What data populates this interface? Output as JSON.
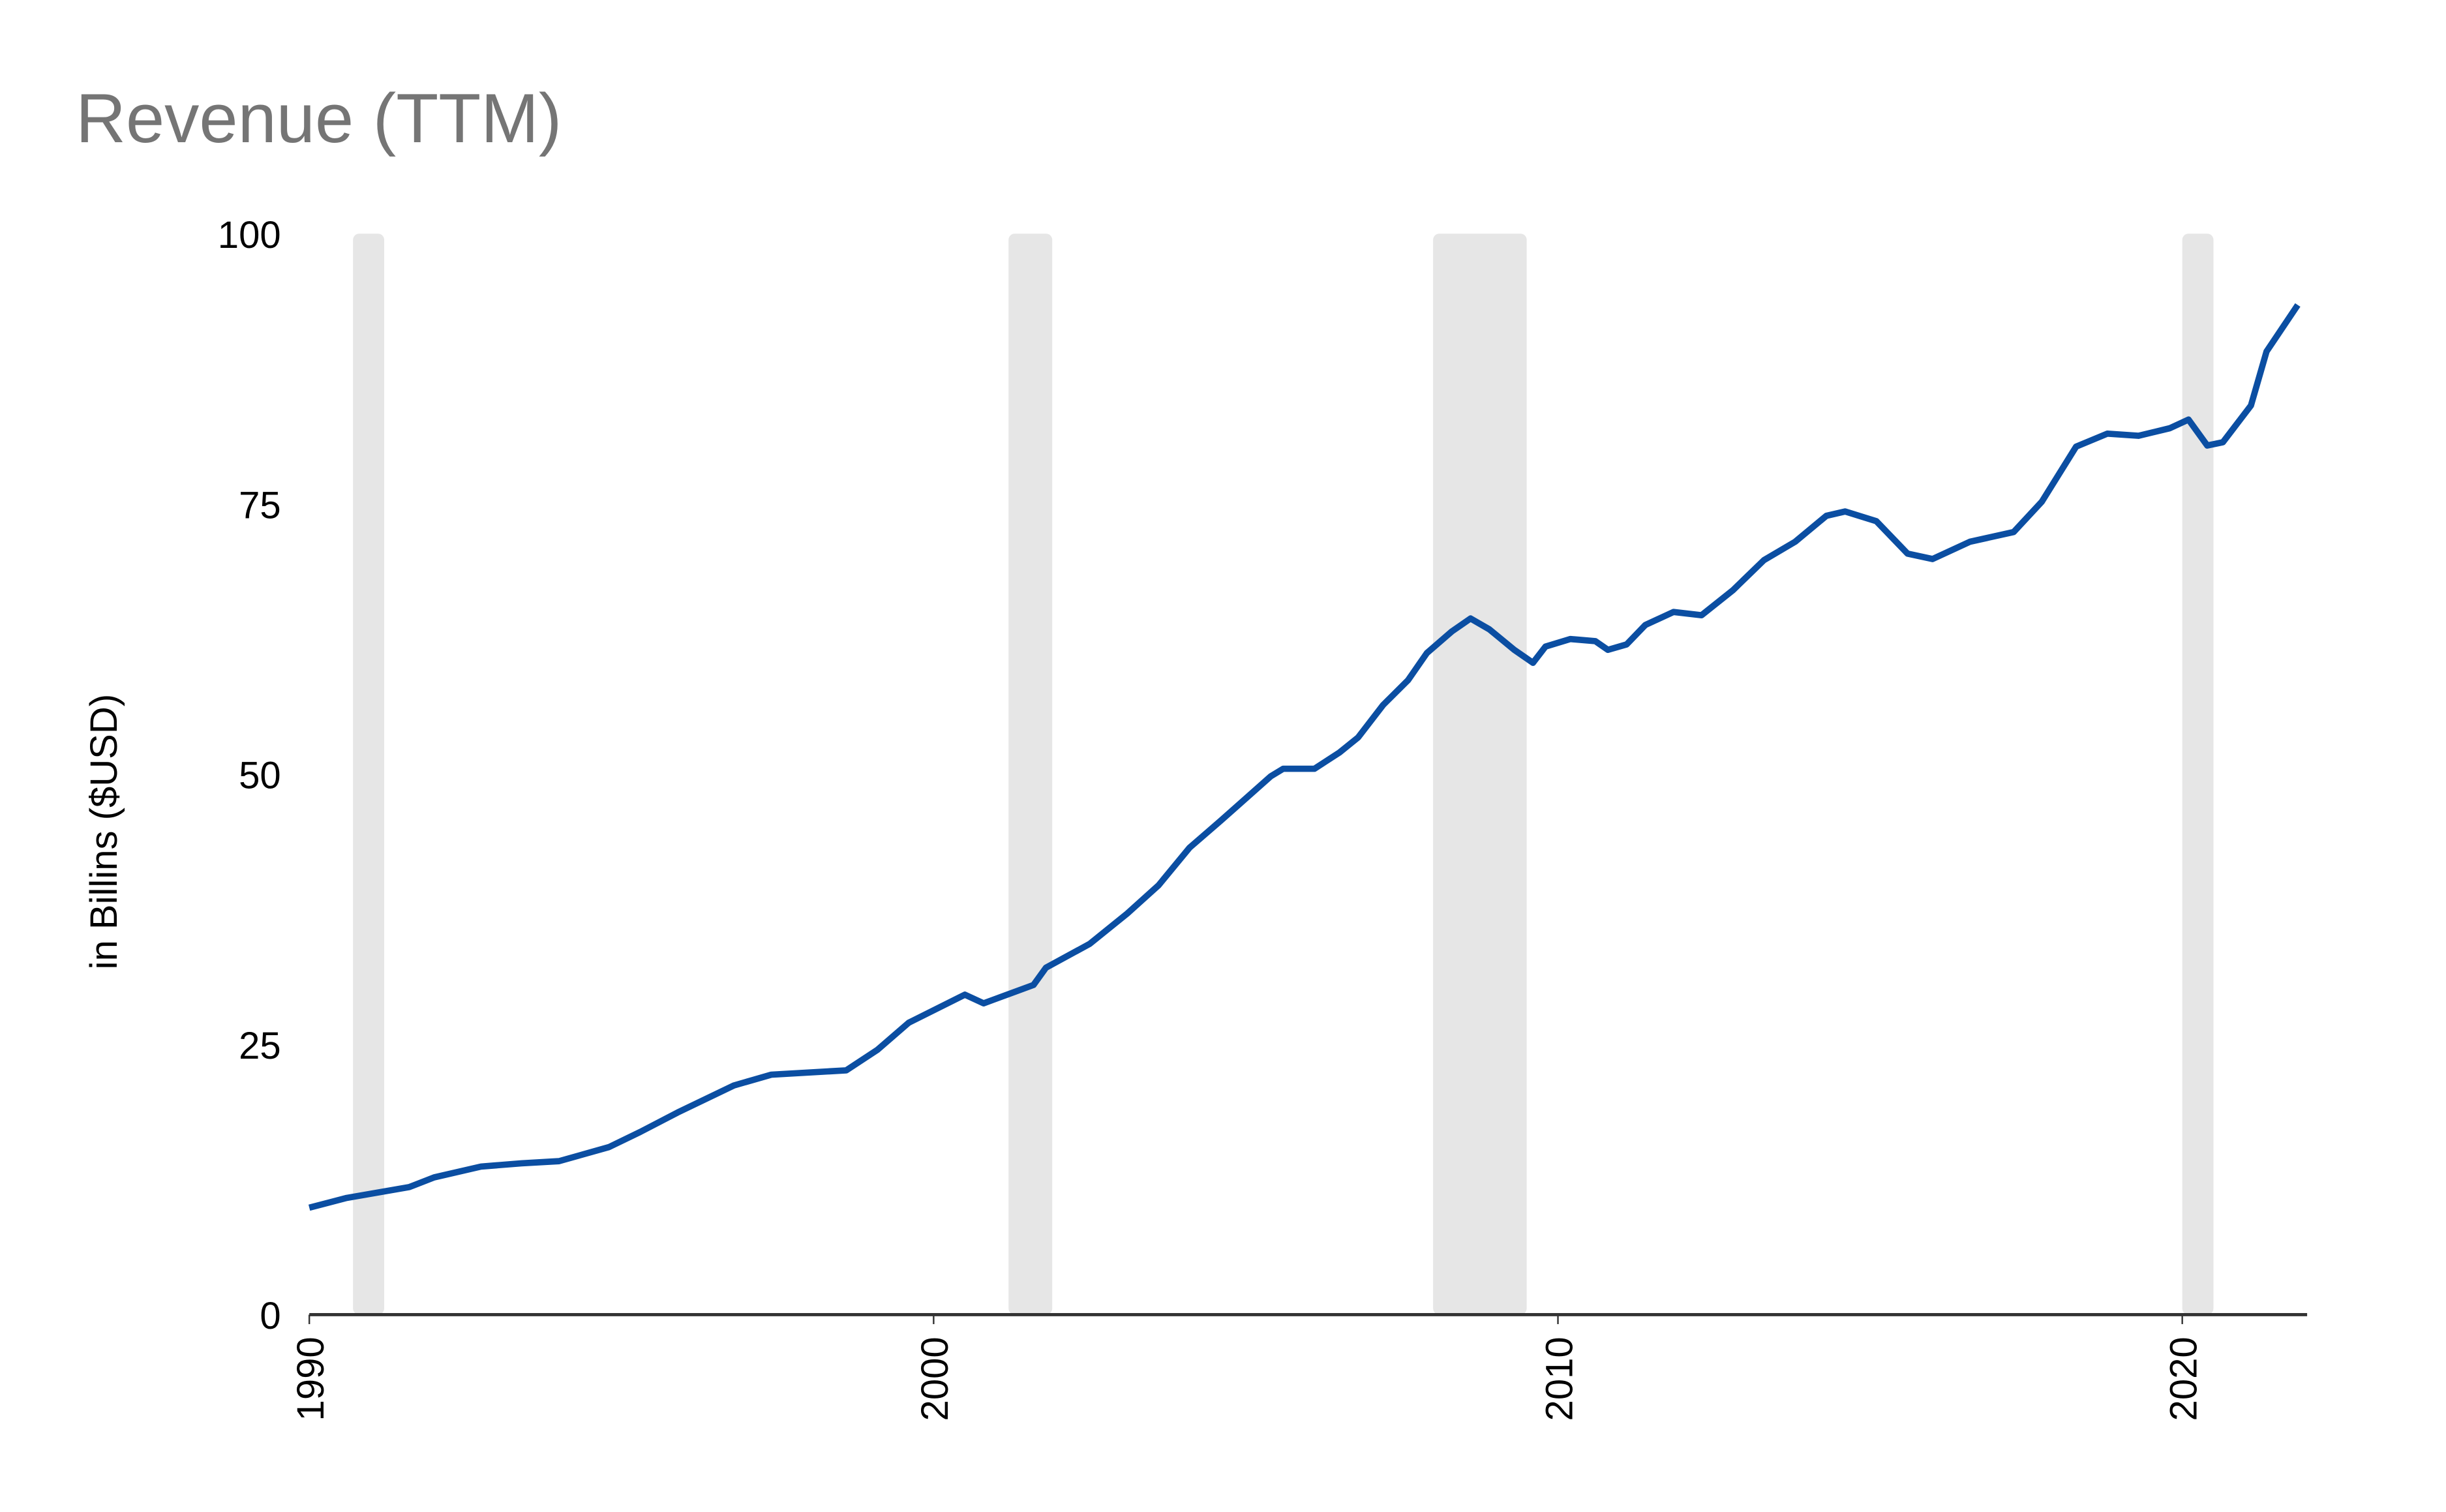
{
  "chart_data": {
    "type": "line",
    "title": "Revenue (TTM)",
    "y_label": "in Billins ($USD)",
    "x": [
      1990.0,
      1990.6,
      1991.6,
      1992.0,
      1992.75,
      1993.4,
      1994.0,
      1994.8,
      1995.3,
      1995.9,
      1996.8,
      1997.4,
      1998.6,
      1999.1,
      1999.6,
      2000.5,
      2000.8,
      2001.6,
      2001.8,
      2002.5,
      2003.1,
      2003.6,
      2004.1,
      2004.6,
      2005.4,
      2005.6,
      2006.1,
      2006.5,
      2006.8,
      2007.2,
      2007.6,
      2007.9,
      2008.3,
      2008.6,
      2008.9,
      2009.3,
      2009.6,
      2009.8,
      2010.2,
      2010.6,
      2010.8,
      2011.1,
      2011.4,
      2011.85,
      2012.3,
      2012.8,
      2013.3,
      2013.8,
      2014.3,
      2014.6,
      2015.1,
      2015.6,
      2016.0,
      2016.6,
      2017.3,
      2017.75,
      2018.3,
      2018.8,
      2019.3,
      2019.8,
      2020.1,
      2020.4,
      2020.65,
      2021.1,
      2021.35,
      2021.85
    ],
    "series": [
      {
        "name": "Revenue",
        "color": "#0b4ea2",
        "values": [
          9.9,
          10.8,
          11.8,
          12.7,
          13.7,
          14.0,
          14.2,
          15.5,
          16.9,
          18.7,
          21.2,
          22.2,
          22.6,
          24.5,
          27.0,
          29.6,
          28.8,
          30.5,
          32.1,
          34.3,
          37.1,
          39.7,
          43.2,
          45.7,
          49.8,
          50.5,
          50.5,
          52.0,
          53.4,
          56.4,
          58.7,
          61.2,
          63.2,
          64.4,
          63.4,
          61.5,
          60.3,
          61.8,
          62.5,
          62.3,
          61.5,
          62.0,
          63.8,
          65.0,
          64.7,
          67.0,
          69.8,
          71.5,
          73.9,
          74.3,
          73.4,
          70.4,
          69.9,
          71.5,
          72.4,
          75.2,
          80.3,
          81.5,
          81.3,
          82.0,
          82.8,
          80.4,
          80.7,
          84.1,
          89.1,
          93.4
        ]
      }
    ],
    "shaded_periods": [
      [
        1990.7,
        1991.2
      ],
      [
        2001.2,
        2001.9
      ],
      [
        2008.0,
        2009.5
      ],
      [
        2020.0,
        2020.5
      ]
    ],
    "shade_color": "#e6e6e6",
    "xlim": [
      1990,
      2022
    ],
    "xticks": [
      1990,
      2000,
      2010,
      2020
    ],
    "ylim": [
      0,
      100
    ],
    "yticks": [
      0,
      25,
      50,
      75,
      100
    ],
    "grid": false
  }
}
